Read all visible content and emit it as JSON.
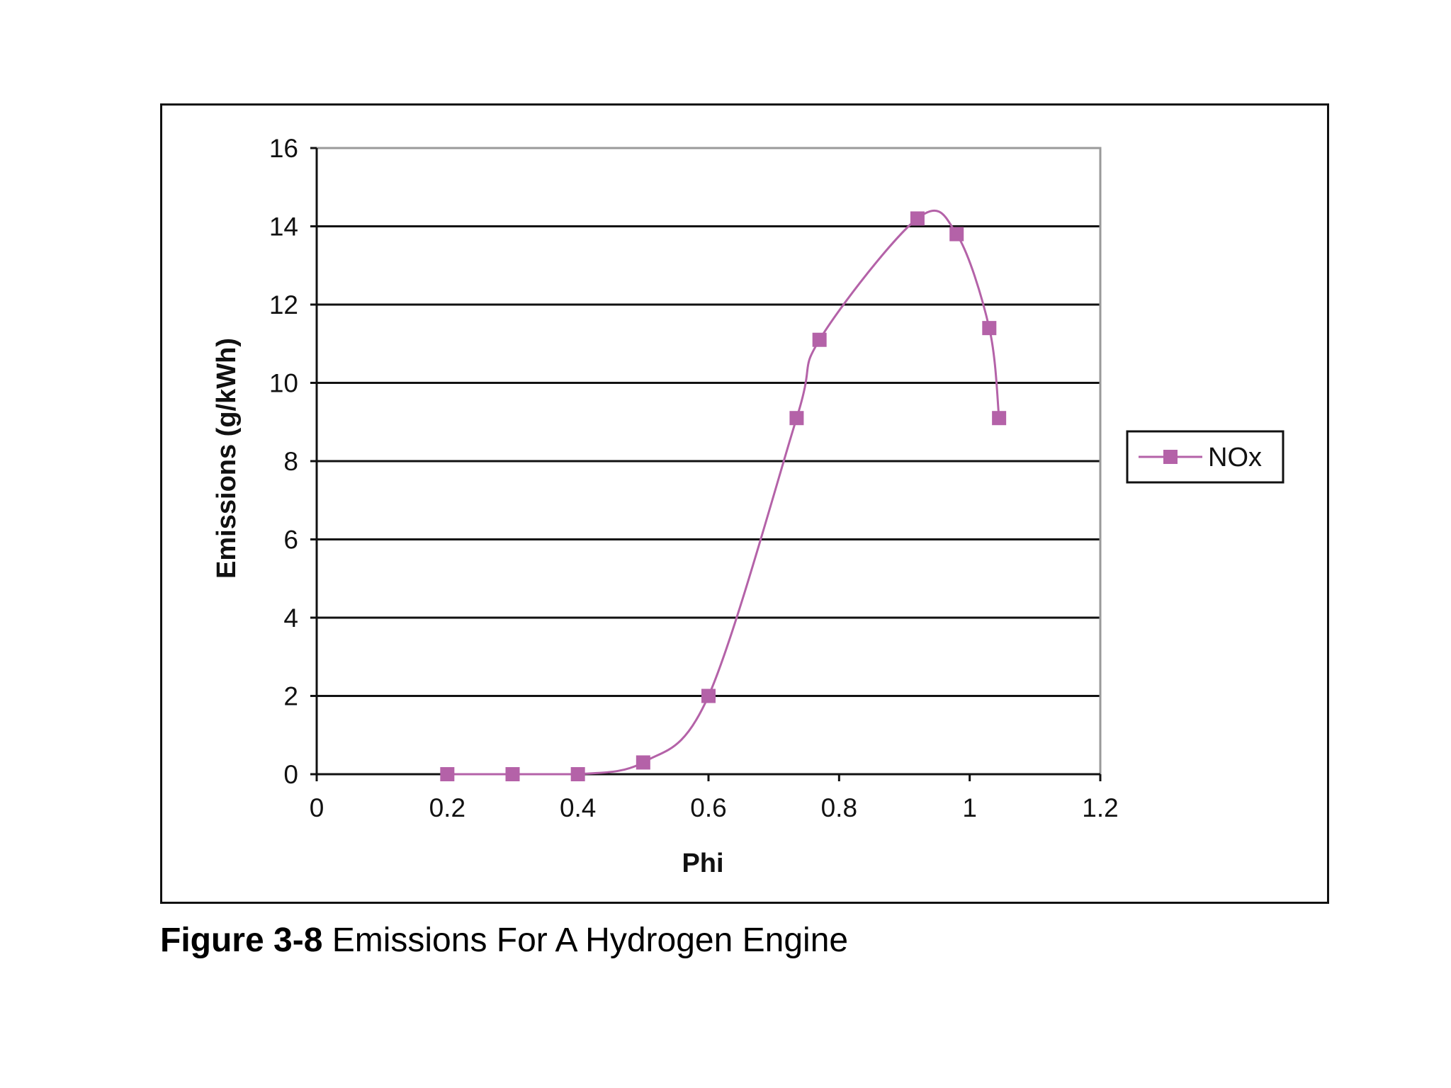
{
  "chart_data": {
    "type": "line",
    "xlabel": "Phi",
    "ylabel": "Emissions (g/kWh)",
    "xlim": [
      0,
      1.2
    ],
    "ylim": [
      0,
      16
    ],
    "xticks": [
      "0",
      "0.2",
      "0.4",
      "0.6",
      "0.8",
      "1",
      "1.2"
    ],
    "yticks": [
      "0",
      "2",
      "4",
      "6",
      "8",
      "10",
      "12",
      "14",
      "16"
    ],
    "grid": "horizontal",
    "legend_position": "right",
    "series": [
      {
        "name": "NOx",
        "color": "#b462a8",
        "marker": "square",
        "smooth": true,
        "x": [
          0.2,
          0.3,
          0.4,
          0.5,
          0.6,
          0.735,
          0.77,
          0.92,
          0.98,
          1.03,
          1.045
        ],
        "y": [
          0,
          0,
          0,
          0.3,
          2,
          9.1,
          11.1,
          14.2,
          13.8,
          11.4,
          9.1
        ]
      }
    ]
  },
  "caption": {
    "label": "Figure 3-8",
    "text": " Emissions For A Hydrogen Engine"
  }
}
